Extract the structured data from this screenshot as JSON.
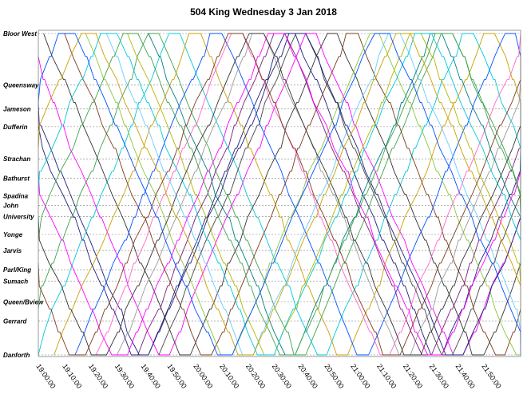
{
  "chart_data": {
    "type": "line",
    "title": "504 King Wednesday 3 Jan 2018",
    "xlabel": "",
    "ylabel": "",
    "x_ticks": [
      "19:00:00",
      "19:10:00",
      "19:20:00",
      "19:30:00",
      "19:40:00",
      "19:50:00",
      "20:00:00",
      "20:10:00",
      "20:20:00",
      "20:30:00",
      "20:40:00",
      "20:50:00",
      "21:00:00",
      "21:10:00",
      "21:20:00",
      "21:30:00",
      "21:40:00",
      "21:50:00"
    ],
    "xlim_minutes": [
      0,
      184
    ],
    "stops": [
      {
        "name": "Bloor West",
        "pos": 0.0
      },
      {
        "name": "Queensway",
        "pos": 0.16
      },
      {
        "name": "Jameson",
        "pos": 0.235
      },
      {
        "name": "Dufferin",
        "pos": 0.29
      },
      {
        "name": "Strachan",
        "pos": 0.39
      },
      {
        "name": "Bathurst",
        "pos": 0.45
      },
      {
        "name": "Spadina",
        "pos": 0.505
      },
      {
        "name": "John",
        "pos": 0.535
      },
      {
        "name": "University",
        "pos": 0.57
      },
      {
        "name": "Yonge",
        "pos": 0.625
      },
      {
        "name": "Jarvis",
        "pos": 0.675
      },
      {
        "name": "Parl/King",
        "pos": 0.735
      },
      {
        "name": "Sumach",
        "pos": 0.77
      },
      {
        "name": "Queen/Bview",
        "pos": 0.835
      },
      {
        "name": "Gerrard",
        "pos": 0.895
      },
      {
        "name": "Danforth",
        "pos": 1.0
      }
    ],
    "series_colors": [
      "#1f1f7a",
      "#3fa34d",
      "#ff00ff",
      "#00c8d6",
      "#333333",
      "#c8a000",
      "#7a3b1f",
      "#0050ff",
      "#8cc63f",
      "#ff66cc",
      "#66ccff",
      "#999999",
      "#b5b500",
      "#7a1f7a",
      "#008080",
      "#444444"
    ],
    "series": [
      {
        "start": -14,
        "run": 52,
        "layover": 4,
        "cycles": 3
      },
      {
        "start": -10,
        "run": 52,
        "layover": 4,
        "cycles": 3
      },
      {
        "start": -6,
        "run": 52,
        "layover": 4,
        "cycles": 3
      },
      {
        "start": -2,
        "run": 52,
        "layover": 4,
        "cycles": 3
      },
      {
        "start": 2,
        "run": 52,
        "layover": 4,
        "cycles": 3
      },
      {
        "start": 6,
        "run": 52,
        "layover": 4,
        "cycles": 3
      },
      {
        "start": 10,
        "run": 52,
        "layover": 4,
        "cycles": 3
      },
      {
        "start": 14,
        "run": 52,
        "layover": 4,
        "cycles": 3
      },
      {
        "start": 18,
        "run": 52,
        "layover": 4,
        "cycles": 3
      },
      {
        "start": 22,
        "run": 52,
        "layover": 4,
        "cycles": 3
      },
      {
        "start": 26,
        "run": 52,
        "layover": 4,
        "cycles": 3
      },
      {
        "start": 30,
        "run": 52,
        "layover": 4,
        "cycles": 3
      },
      {
        "start": 34,
        "run": 52,
        "layover": 4,
        "cycles": 3
      },
      {
        "start": 38,
        "run": 52,
        "layover": 4,
        "cycles": 3
      },
      {
        "start": 42,
        "run": 52,
        "layover": 4,
        "cycles": 3
      },
      {
        "start": 46,
        "run": 52,
        "layover": 4,
        "cycles": 3
      },
      {
        "start": -18,
        "run": 54,
        "layover": 6,
        "cycles": 3
      },
      {
        "start": -22,
        "run": 54,
        "layover": 6,
        "cycles": 3
      },
      {
        "start": -26,
        "run": 54,
        "layover": 6,
        "cycles": 3
      },
      {
        "start": -30,
        "run": 54,
        "layover": 6,
        "cycles": 3
      },
      {
        "start": -34,
        "run": 54,
        "layover": 6,
        "cycles": 3
      },
      {
        "start": -38,
        "run": 54,
        "layover": 6,
        "cycles": 3
      },
      {
        "start": -42,
        "run": 54,
        "layover": 6,
        "cycles": 3
      },
      {
        "start": -46,
        "run": 54,
        "layover": 6,
        "cycles": 3
      }
    ]
  }
}
